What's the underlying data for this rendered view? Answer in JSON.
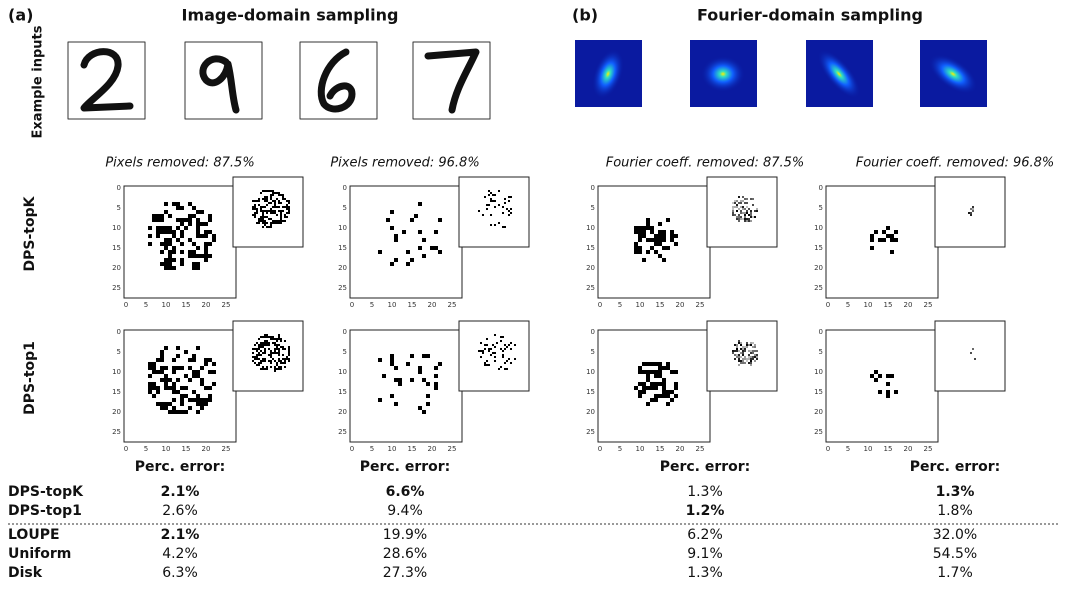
{
  "panels": [
    {
      "label": "(a)",
      "title": "Image-domain sampling",
      "conditions": [
        "Pixels removed: 87.5%",
        "Pixels removed: 96.8%"
      ]
    },
    {
      "label": "(b)",
      "title": "Fourier-domain sampling",
      "conditions": [
        "Fourier coeff. removed: 87.5%",
        "Fourier coeff. removed: 96.8%"
      ]
    }
  ],
  "row_labels": {
    "example": "Example inputs",
    "methods": [
      "DPS-topK",
      "DPS-top1"
    ]
  },
  "axis_ticks": [
    0,
    5,
    10,
    15,
    20,
    25
  ],
  "error_heading": "Perc. error:",
  "results": {
    "rows": [
      {
        "method": "DPS-topK",
        "errors": [
          "2.1%",
          "6.6%",
          "1.3%",
          "1.3%"
        ],
        "best": [
          true,
          true,
          false,
          true
        ]
      },
      {
        "method": "DPS-top1",
        "errors": [
          "2.6%",
          "9.4%",
          "1.2%",
          "1.8%"
        ],
        "best": [
          false,
          false,
          true,
          false
        ]
      },
      {
        "method": "LOUPE",
        "errors": [
          "2.1%",
          "19.9%",
          "6.2%",
          "32.0%"
        ],
        "best": [
          true,
          false,
          false,
          false
        ]
      },
      {
        "method": "Uniform",
        "errors": [
          "4.2%",
          "28.6%",
          "9.1%",
          "54.5%"
        ],
        "best": [
          false,
          false,
          false,
          false
        ]
      },
      {
        "method": "Disk",
        "errors": [
          "6.3%",
          "27.3%",
          "1.3%",
          "1.7%"
        ],
        "best": [
          false,
          false,
          false,
          false
        ]
      }
    ]
  }
}
